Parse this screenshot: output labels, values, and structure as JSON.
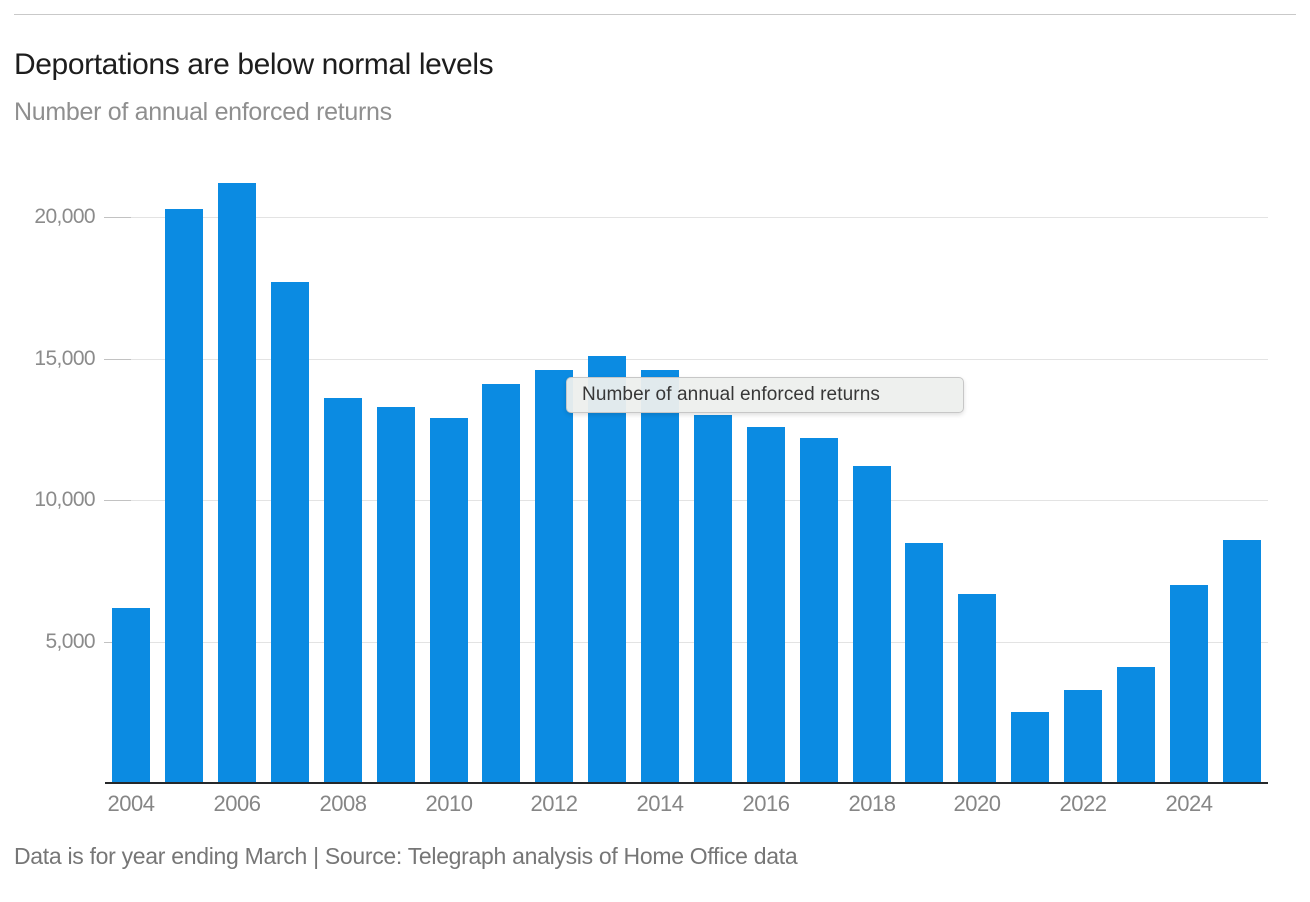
{
  "page": {
    "title": "Deportations are below normal levels",
    "subtitle": "Number of annual enforced returns",
    "footer": "Data is for year ending March | Source: Telegraph analysis of Home Office data"
  },
  "tooltip": {
    "text": "Number of annual enforced returns"
  },
  "colors": {
    "bar": "#0b8be2",
    "gridline": "#e3e3e3",
    "axis_line": "#26282a",
    "title_text": "#1d1d1d",
    "muted_text": "#8b8b8b",
    "footer_text": "#767676",
    "tooltip_bg": "#edefed",
    "tooltip_border": "#c7c7c7",
    "top_rule": "#c9c9c9"
  },
  "chart_data": {
    "type": "bar",
    "title": "Deportations are below normal levels",
    "subtitle": "Number of annual enforced returns",
    "xlabel": "",
    "ylabel": "Number of annual enforced returns",
    "categories": [
      2004,
      2005,
      2006,
      2007,
      2008,
      2009,
      2010,
      2011,
      2012,
      2013,
      2014,
      2015,
      2016,
      2017,
      2018,
      2019,
      2020,
      2021,
      2022,
      2023,
      2024,
      2025
    ],
    "values": [
      6200,
      20300,
      21200,
      17700,
      13600,
      13300,
      12900,
      14100,
      14600,
      15100,
      14600,
      13000,
      12600,
      12200,
      11200,
      8500,
      6700,
      2500,
      3300,
      4100,
      7000,
      8600
    ],
    "xticks": [
      {
        "year": 2004,
        "label": "2004"
      },
      {
        "year": 2006,
        "label": "2006"
      },
      {
        "year": 2008,
        "label": "2008"
      },
      {
        "year": 2010,
        "label": "2010"
      },
      {
        "year": 2012,
        "label": "2012"
      },
      {
        "year": 2014,
        "label": "2014"
      },
      {
        "year": 2016,
        "label": "2016"
      },
      {
        "year": 2018,
        "label": "2018"
      },
      {
        "year": 2020,
        "label": "2020"
      },
      {
        "year": 2022,
        "label": "2022"
      },
      {
        "year": 2024,
        "label": "2024"
      }
    ],
    "yticks": [
      {
        "value": 5000,
        "label": "5,000"
      },
      {
        "value": 10000,
        "label": "10,000"
      },
      {
        "value": 15000,
        "label": "15,000"
      },
      {
        "value": 20000,
        "label": "20,000"
      }
    ],
    "ylim": [
      0,
      21500
    ],
    "grid": "horizontal",
    "legend": "none",
    "bar_color": "#0b8be2",
    "note": "Data is for year ending March",
    "source": "Telegraph analysis of Home Office data",
    "tooltip_label": "Number of annual enforced returns"
  }
}
